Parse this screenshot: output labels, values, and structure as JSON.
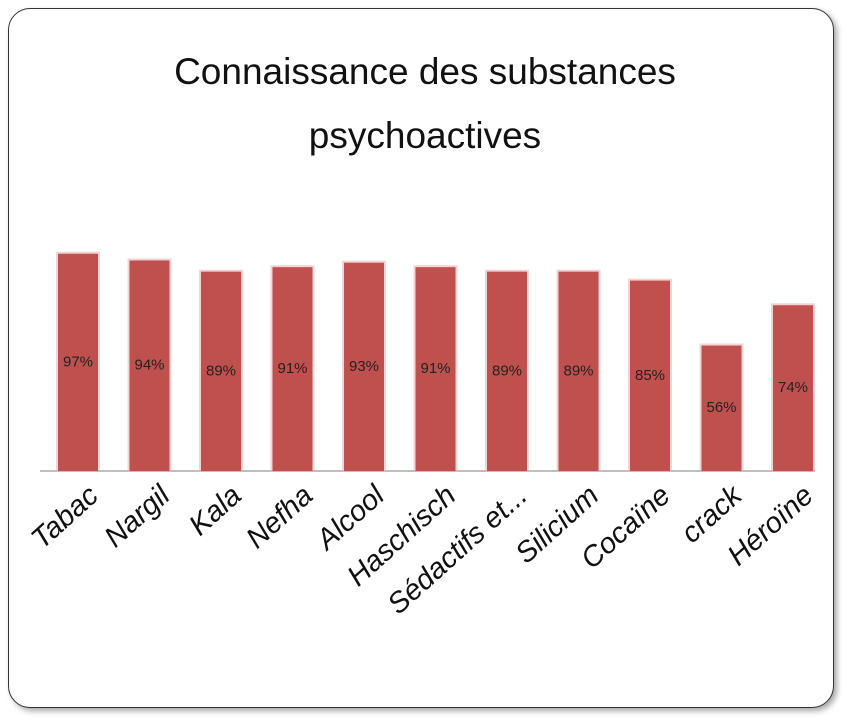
{
  "chart_data": {
    "type": "bar",
    "title": "Connaissance des substances psychoactives",
    "categories": [
      "Tabac",
      "Nargil",
      "Kala",
      "Nefha",
      "Alcool",
      "Haschisch",
      "Sédactifs et...",
      "Silicium",
      "Cocaïne",
      "crack",
      "Héroïne"
    ],
    "values": [
      97,
      94,
      89,
      91,
      93,
      91,
      89,
      89,
      85,
      56,
      74
    ],
    "value_labels": [
      "97%",
      "94%",
      "89%",
      "91%",
      "93%",
      "91%",
      "89%",
      "89%",
      "85%",
      "56%",
      "74%"
    ],
    "color": "#c0504d"
  }
}
